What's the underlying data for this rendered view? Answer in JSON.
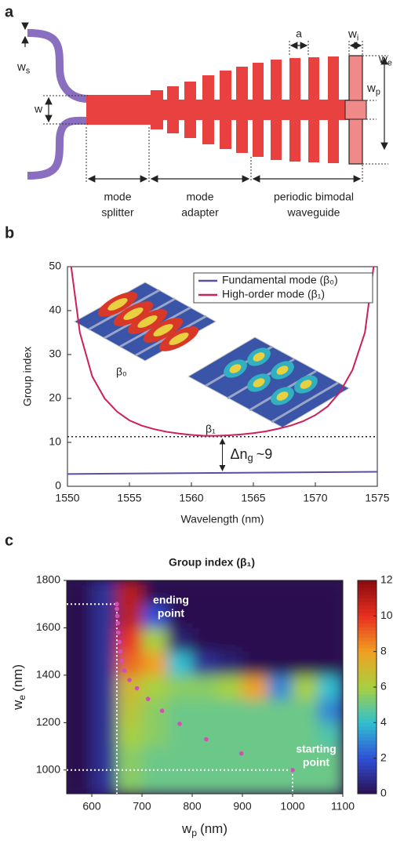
{
  "diagram": {
    "label": "a",
    "ws": {
      "base": "w",
      "sub": "s"
    },
    "w": "w",
    "a": "a",
    "wi": {
      "base": "w",
      "sub": "i"
    },
    "we": {
      "base": "w",
      "sub": "e"
    },
    "wp": {
      "base": "w",
      "sub": "p"
    },
    "sections": [
      [
        "mode",
        "splitter"
      ],
      [
        "mode",
        "adapter"
      ],
      [
        "periodic bimodal",
        "waveguide"
      ]
    ]
  },
  "chart_data": [
    {
      "type": "line",
      "label": "b",
      "xlabel": "Wavelength (nm)",
      "ylabel": "Group index",
      "xlim": [
        1550,
        1575
      ],
      "xticks": [
        1550,
        1555,
        1560,
        1565,
        1570,
        1575
      ],
      "ylim": [
        0,
        50
      ],
      "yticks": [
        0,
        10,
        20,
        30,
        40,
        50
      ],
      "legend": "upper right",
      "series": [
        {
          "name": "Fundamental mode (β₀)",
          "color": "#5b4ea6",
          "x": [
            1550,
            1575
          ],
          "values": [
            2.8,
            3.3
          ]
        },
        {
          "name": "High-order mode (β₁)",
          "color": "#cc1f5c",
          "x": [
            1550.3,
            1551,
            1552,
            1553,
            1554,
            1555,
            1556,
            1557,
            1558,
            1559,
            1560,
            1561,
            1562,
            1563,
            1564,
            1565,
            1566,
            1567,
            1568,
            1569,
            1570,
            1571,
            1572,
            1573,
            1574,
            1574.7
          ],
          "values": [
            50,
            35,
            25,
            20,
            17,
            15,
            13.8,
            13,
            12.4,
            12,
            11.7,
            11.5,
            11.5,
            11.6,
            11.8,
            12.1,
            12.5,
            13.1,
            13.8,
            14.8,
            16.2,
            18.2,
            21.5,
            26.5,
            35,
            50
          ]
        }
      ],
      "hline": 11.3,
      "annotation": {
        "base": "Δn",
        "sub": "g",
        "after": "~9"
      },
      "insets": [
        "β₀",
        "β₁"
      ]
    },
    {
      "type": "heatmap",
      "label": "c",
      "title": "Group index (β₁)",
      "xlabel": {
        "base": "w",
        "sub": "p",
        "after": "(nm)"
      },
      "ylabel": {
        "base": "w",
        "sub": "e",
        "after": "(nm)"
      },
      "xlim": [
        550,
        1100
      ],
      "xticks": [
        600,
        700,
        800,
        900,
        1000,
        1100
      ],
      "ylim": [
        900,
        1800
      ],
      "yticks": [
        1000,
        1200,
        1400,
        1600,
        1800
      ],
      "zlim": [
        0,
        12
      ],
      "zticks": [
        0,
        2,
        4,
        6,
        8,
        10,
        12
      ],
      "colormap": [
        "#2b1050",
        "#3050d8",
        "#30c0d0",
        "#a8d040",
        "#f0a020",
        "#e83020",
        "#8a0a10"
      ],
      "x": [
        575,
        625,
        675,
        725,
        775,
        825,
        875,
        925,
        975,
        1025,
        1075
      ],
      "y": [
        950,
        1050,
        1150,
        1250,
        1350,
        1450,
        1550,
        1650,
        1750
      ],
      "z": [
        [
          0,
          1,
          5.5,
          5,
          5,
          5,
          5,
          5,
          5,
          5,
          5
        ],
        [
          0,
          1,
          5.5,
          5,
          5,
          5,
          5,
          5,
          5,
          5,
          5
        ],
        [
          0,
          1,
          6,
          5.5,
          5,
          5,
          5,
          5,
          5,
          5,
          4.5
        ],
        [
          0,
          1,
          6.5,
          5.5,
          5,
          5,
          5,
          5,
          5,
          5,
          3
        ],
        [
          0,
          1,
          7,
          6,
          5.5,
          5.5,
          6,
          8,
          3,
          6,
          4
        ],
        [
          0,
          1,
          9,
          8,
          4,
          1,
          0.5,
          0,
          0,
          0,
          0
        ],
        [
          0,
          1,
          10,
          6,
          0.5,
          0,
          0,
          0,
          0,
          0,
          0
        ],
        [
          0,
          1,
          11,
          2,
          0,
          0,
          0,
          0,
          0,
          0,
          0
        ],
        [
          0,
          1,
          11,
          0,
          0,
          0,
          0,
          0,
          0,
          0,
          0
        ]
      ],
      "points": {
        "color": "#d24fb4",
        "x": [
          1000,
          898,
          828,
          775,
          740,
          712,
          690,
          675,
          665,
          660,
          657,
          655,
          653,
          652,
          651,
          650,
          650
        ],
        "y": [
          1000,
          1070,
          1130,
          1195,
          1250,
          1300,
          1345,
          1380,
          1420,
          1460,
          1500,
          1540,
          1580,
          1620,
          1650,
          1680,
          1700
        ]
      },
      "annotations": [
        [
          "ending",
          "point"
        ],
        [
          "starting",
          "point"
        ]
      ]
    }
  ]
}
